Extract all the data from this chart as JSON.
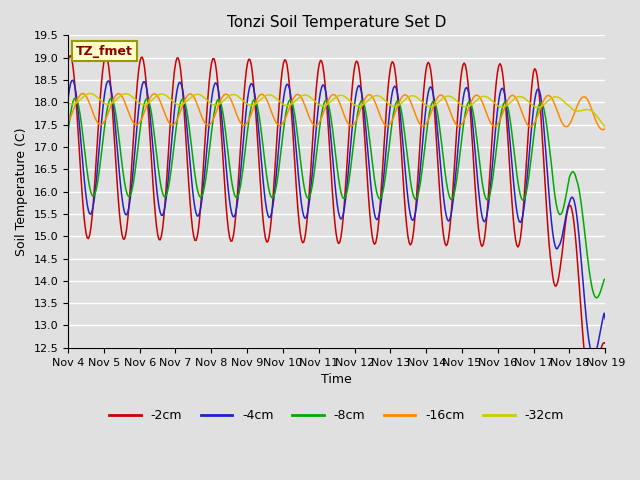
{
  "title": "Tonzi Soil Temperature Set D",
  "xlabel": "Time",
  "ylabel": "Soil Temperature (C)",
  "ylim": [
    12.5,
    19.5
  ],
  "xlim_start": 0,
  "xlim_end": 15,
  "xtick_labels": [
    "Nov 4",
    "Nov 5",
    "Nov 6",
    "Nov 7",
    "Nov 8",
    "Nov 9",
    "Nov 10",
    "Nov 11",
    "Nov 12",
    "Nov 13",
    "Nov 14",
    "Nov 15",
    "Nov 16",
    "Nov 17",
    "Nov 18",
    "Nov 19"
  ],
  "ytick_values": [
    12.5,
    13.0,
    13.5,
    14.0,
    14.5,
    15.0,
    15.5,
    16.0,
    16.5,
    17.0,
    17.5,
    18.0,
    18.5,
    19.0,
    19.5
  ],
  "legend_labels": [
    "-2cm",
    "-4cm",
    "-8cm",
    "-16cm",
    "-32cm"
  ],
  "line_colors": [
    "#cc0000",
    "#2222cc",
    "#00aa00",
    "#ff8800",
    "#cccc00"
  ],
  "background_color": "#e0e0e0",
  "plot_bg_color": "#e0e0e0",
  "label_box_color": "#ffffcc",
  "label_box_text": "TZ_fmet",
  "label_box_text_color": "#880000",
  "title_fontsize": 11,
  "axis_label_fontsize": 9,
  "tick_label_fontsize": 8,
  "legend_fontsize": 9,
  "figwidth": 6.4,
  "figheight": 4.8,
  "dpi": 100
}
